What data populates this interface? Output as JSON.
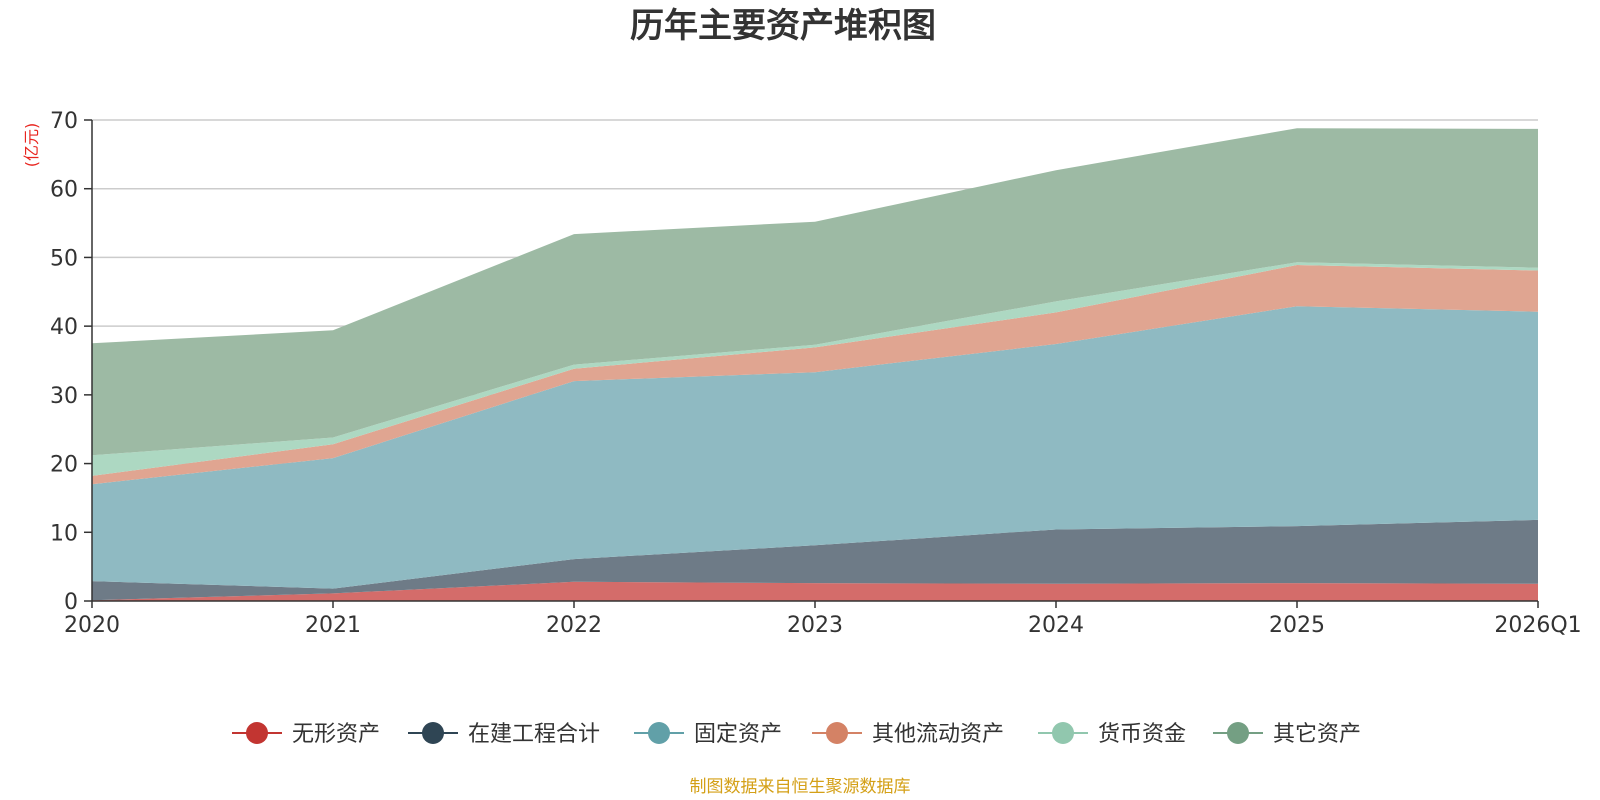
{
  "chart_data": {
    "type": "area",
    "stacked": true,
    "title": "历年主要资产堆积图",
    "y_unit": "(亿元)",
    "x": [
      "2020",
      "2021",
      "2022",
      "2023",
      "2024",
      "2025",
      "2026Q1"
    ],
    "ylim": [
      0,
      70
    ],
    "yticks": [
      0,
      10,
      20,
      30,
      40,
      50,
      60,
      70
    ],
    "grid": true,
    "legend_position": "bottom",
    "series": [
      {
        "name": "无形资产",
        "color": "#c23531",
        "fill": "#d46c6a",
        "values": [
          0.1,
          1.1,
          2.8,
          2.6,
          2.5,
          2.6,
          2.5
        ]
      },
      {
        "name": "在建工程合计",
        "color": "#2f4554",
        "fill": "#6e7b87",
        "values": [
          2.8,
          0.7,
          3.3,
          5.5,
          7.9,
          8.3,
          9.3
        ]
      },
      {
        "name": "固定资产",
        "color": "#61a0a8",
        "fill": "#8fbac2",
        "values": [
          14.1,
          19.0,
          25.9,
          25.2,
          27.0,
          32.0,
          30.3
        ]
      },
      {
        "name": "其他流动资产",
        "color": "#d48265",
        "fill": "#e0a591",
        "values": [
          1.2,
          2.0,
          1.8,
          3.6,
          4.6,
          6.0,
          6.0
        ]
      },
      {
        "name": "货币资金",
        "color": "#91c7ae",
        "fill": "#add8c2",
        "values": [
          3.0,
          1.0,
          0.6,
          0.4,
          1.6,
          0.4,
          0.4
        ]
      },
      {
        "name": "其它资产",
        "color": "#749f83",
        "fill": "#9dba a4",
        "values": [
          16.3,
          15.6,
          19.0,
          17.9,
          19.1,
          19.5,
          20.2
        ]
      }
    ],
    "source": "制图数据来自恒生聚源数据库"
  },
  "colors": {
    "unit_label": "#e8251f",
    "source_label": "#d4a017"
  }
}
